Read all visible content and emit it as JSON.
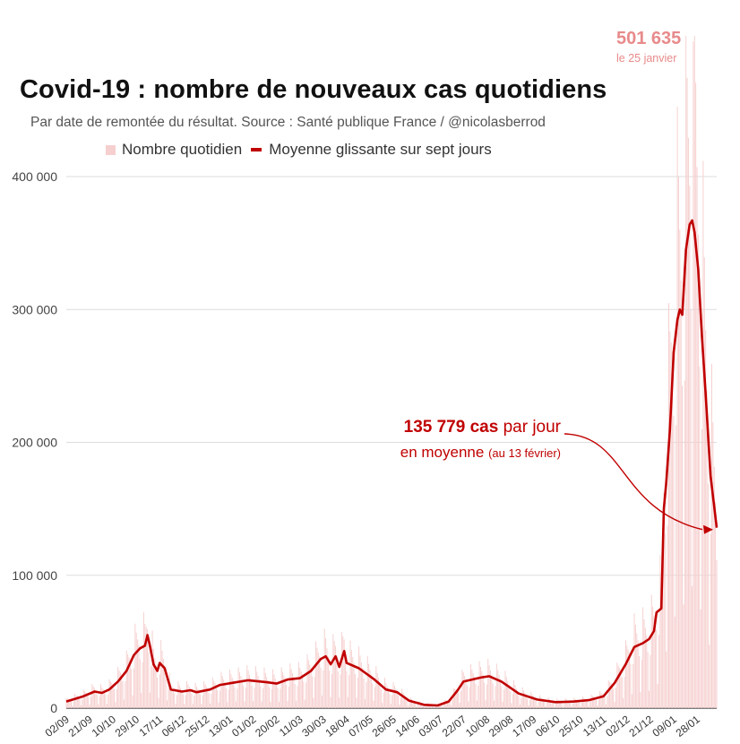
{
  "chart_data": {
    "type": "bar+line",
    "title": "Covid-19 : nombre de nouveaux cas quotidiens",
    "subtitle": "Par date de remontée du résultat. Source : Santé publique France / @nicolasberrod",
    "legend": {
      "bar_label": "Nombre quotidien",
      "line_label": "Moyenne glissante sur sept jours",
      "placement": "top"
    },
    "ylim": [
      0,
      400000
    ],
    "y_ticks": [
      {
        "value": 0,
        "label": "0"
      },
      {
        "value": 100000,
        "label": "100 000"
      },
      {
        "value": 200000,
        "label": "200 000"
      },
      {
        "value": 300000,
        "label": "300 000"
      },
      {
        "value": 400000,
        "label": "400 000"
      }
    ],
    "x_start": "2020-09-02",
    "x_end": "2022-02-13",
    "x_tick_labels": [
      "02/09",
      "21/09",
      "10/10",
      "29/10",
      "17/11",
      "06/12",
      "25/12",
      "13/01",
      "01/02",
      "20/02",
      "11/03",
      "30/03",
      "18/04",
      "07/05",
      "26/05",
      "14/06",
      "03/07",
      "22/07",
      "10/08",
      "29/08",
      "17/09",
      "06/10",
      "25/10",
      "13/11",
      "02/12",
      "21/12",
      "09/01",
      "28/01"
    ],
    "series": [
      {
        "name": "Moyenne glissante sur sept jours",
        "kind": "line",
        "color": "#c00000",
        "points": [
          [
            "2020-09-02",
            5000
          ],
          [
            "2020-09-16",
            9000
          ],
          [
            "2020-09-25",
            12500
          ],
          [
            "2020-10-01",
            11500
          ],
          [
            "2020-10-07",
            14000
          ],
          [
            "2020-10-14",
            20000
          ],
          [
            "2020-10-21",
            28000
          ],
          [
            "2020-10-27",
            40000
          ],
          [
            "2020-11-01",
            45000
          ],
          [
            "2020-11-05",
            47000
          ],
          [
            "2020-11-07",
            55000
          ],
          [
            "2020-11-09",
            47000
          ],
          [
            "2020-11-12",
            33000
          ],
          [
            "2020-11-15",
            28000
          ],
          [
            "2020-11-17",
            34000
          ],
          [
            "2020-11-21",
            30000
          ],
          [
            "2020-11-26",
            14000
          ],
          [
            "2020-12-05",
            12500
          ],
          [
            "2020-12-12",
            13500
          ],
          [
            "2020-12-17",
            12000
          ],
          [
            "2020-12-28",
            14000
          ],
          [
            "2021-01-05",
            17500
          ],
          [
            "2021-01-15",
            19000
          ],
          [
            "2021-01-28",
            21000
          ],
          [
            "2021-02-12",
            19500
          ],
          [
            "2021-02-20",
            18500
          ],
          [
            "2021-03-01",
            21500
          ],
          [
            "2021-03-11",
            22500
          ],
          [
            "2021-03-20",
            28000
          ],
          [
            "2021-03-28",
            37000
          ],
          [
            "2021-04-01",
            39000
          ],
          [
            "2021-04-05",
            33000
          ],
          [
            "2021-04-09",
            39000
          ],
          [
            "2021-04-12",
            31000
          ],
          [
            "2021-04-16",
            43000
          ],
          [
            "2021-04-18",
            34000
          ],
          [
            "2021-04-28",
            30000
          ],
          [
            "2021-05-10",
            22000
          ],
          [
            "2021-05-20",
            14000
          ],
          [
            "2021-05-29",
            12000
          ],
          [
            "2021-06-08",
            5500
          ],
          [
            "2021-06-20",
            2500
          ],
          [
            "2021-07-01",
            2000
          ],
          [
            "2021-07-10",
            5000
          ],
          [
            "2021-07-17",
            13000
          ],
          [
            "2021-07-22",
            20000
          ],
          [
            "2021-08-05",
            23000
          ],
          [
            "2021-08-12",
            24000
          ],
          [
            "2021-08-22",
            20000
          ],
          [
            "2021-09-05",
            11000
          ],
          [
            "2021-09-20",
            6500
          ],
          [
            "2021-10-05",
            4500
          ],
          [
            "2021-10-20",
            5000
          ],
          [
            "2021-11-01",
            6000
          ],
          [
            "2021-11-13",
            9000
          ],
          [
            "2021-11-22",
            19000
          ],
          [
            "2021-12-01",
            33000
          ],
          [
            "2021-12-08",
            46000
          ],
          [
            "2021-12-15",
            49000
          ],
          [
            "2021-12-20",
            52000
          ],
          [
            "2021-12-24",
            58000
          ],
          [
            "2021-12-26",
            72000
          ],
          [
            "2021-12-30",
            75000
          ],
          [
            "2022-01-01",
            150000
          ],
          [
            "2022-01-03",
            170000
          ],
          [
            "2022-01-06",
            210000
          ],
          [
            "2022-01-09",
            268000
          ],
          [
            "2022-01-12",
            292000
          ],
          [
            "2022-01-14",
            300000
          ],
          [
            "2022-01-16",
            296000
          ],
          [
            "2022-01-19",
            345000
          ],
          [
            "2022-01-22",
            364000
          ],
          [
            "2022-01-24",
            367000
          ],
          [
            "2022-01-26",
            358000
          ],
          [
            "2022-01-29",
            330000
          ],
          [
            "2022-02-01",
            280000
          ],
          [
            "2022-02-04",
            237000
          ],
          [
            "2022-02-08",
            175000
          ],
          [
            "2022-02-13",
            135779
          ]
        ]
      },
      {
        "name": "Nombre quotidien",
        "kind": "bar",
        "color": "#f6cfcf",
        "daily_max": 501635,
        "daily_max_date": "2022-01-25"
      }
    ],
    "annotations": {
      "peak": {
        "value_label": "501 635",
        "date_label": "le 25 janvier",
        "date": "2022-01-25",
        "value": 501635
      },
      "latest": {
        "value_label": "135 779 cas",
        "suffix": "par jour",
        "line2": "en moyenne",
        "line2_small": "(au 13 février)",
        "date": "2022-02-13",
        "value": 135779
      }
    }
  }
}
